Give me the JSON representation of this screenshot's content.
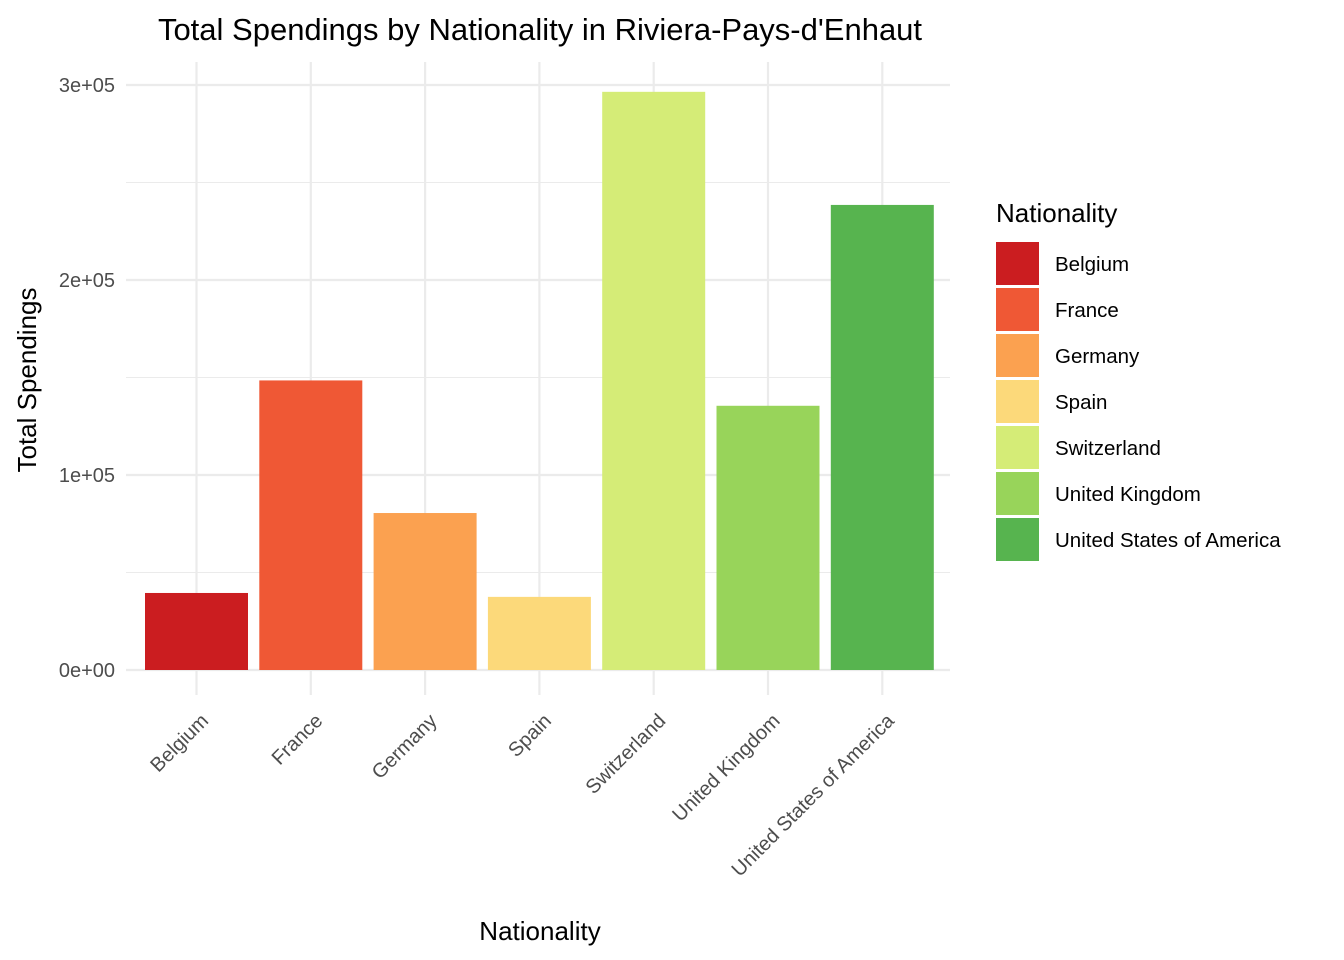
{
  "chart_data": {
    "type": "bar",
    "title": "Total Spendings by Nationality in Riviera-Pays-d'Enhaut",
    "xlabel": "Nationality",
    "ylabel": "Total Spendings",
    "categories": [
      "Belgium",
      "France",
      "Germany",
      "Spain",
      "Switzerland",
      "United Kingdom",
      "United States of America"
    ],
    "values": [
      39500,
      148500,
      80500,
      37500,
      296500,
      135500,
      238500
    ],
    "colors": [
      "#cb1d20",
      "#ef5835",
      "#fba150",
      "#fcd97a",
      "#d5ec77",
      "#98d45a",
      "#57b44f"
    ],
    "ylim": [
      0,
      300000
    ],
    "y_ticks": [
      {
        "value": 0,
        "label": "0e+00"
      },
      {
        "value": 100000,
        "label": "1e+05"
      },
      {
        "value": 200000,
        "label": "2e+05"
      },
      {
        "value": 300000,
        "label": "3e+05"
      }
    ],
    "y_minor_ticks": [
      50000,
      150000,
      250000
    ],
    "grid": true,
    "legend": {
      "title": "Nationality",
      "position": "right",
      "items": [
        "Belgium",
        "France",
        "Germany",
        "Spain",
        "Switzerland",
        "United Kingdom",
        "United States of America"
      ]
    }
  }
}
